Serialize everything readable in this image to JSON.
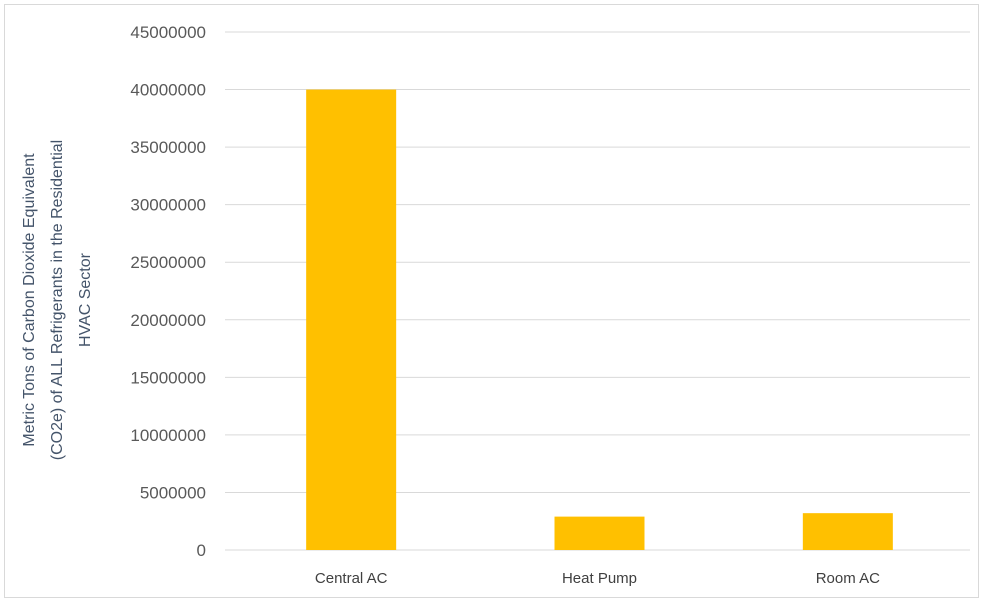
{
  "chart_data": {
    "type": "bar",
    "categories": [
      "Central AC",
      "Heat Pump",
      "Room AC"
    ],
    "values": [
      40000000,
      2900000,
      3200000
    ],
    "ylim": [
      0,
      45000000
    ],
    "yticks": [
      "0",
      "5000000",
      "10000000",
      "15000000",
      "20000000",
      "25000000",
      "30000000",
      "35000000",
      "40000000",
      "45000000"
    ],
    "ylabel_lines": [
      "Metric Tons of Carbon Dioxide Equivalent",
      "(CO2e) of ALL Refrigerants in the Residential",
      "HVAC Sector"
    ],
    "title": "",
    "xlabel": "",
    "grid": true,
    "legend": "none",
    "colors": {
      "bar": "#FFC000",
      "grid": "#d9d9d9",
      "axis_text": "#595959",
      "ylabel": "#44546a"
    }
  }
}
